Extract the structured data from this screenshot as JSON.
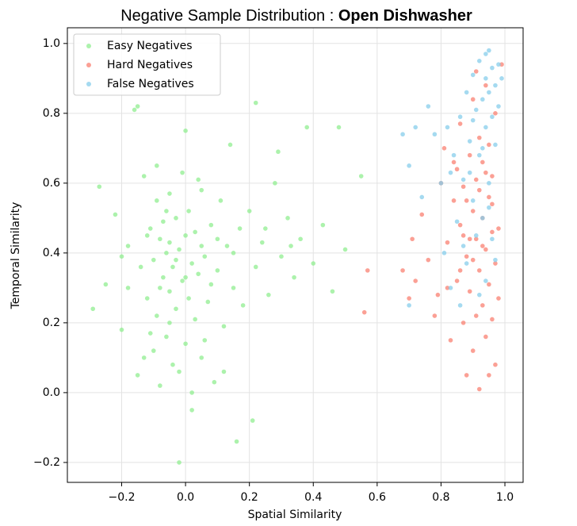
{
  "chart_data": {
    "type": "scatter",
    "title": "Negative Sample Distribution :",
    "title_emphasis": "Open Dishwasher",
    "x_label": "Spatial Similarity",
    "y_label": "Temporal Similarity",
    "xlim": [
      -0.37,
      1.057
    ],
    "ylim": [
      -0.257,
      1.045
    ],
    "xticks": [
      {
        "value": -0.2,
        "label": "−0.2"
      },
      {
        "value": 0,
        "label": "0.0"
      },
      {
        "value": 0.2,
        "label": "0.2"
      },
      {
        "value": 0.4,
        "label": "0.4"
      },
      {
        "value": 0.6,
        "label": "0.6"
      },
      {
        "value": 0.8,
        "label": "0.8"
      },
      {
        "value": 1,
        "label": "1.0"
      }
    ],
    "yticks": [
      {
        "value": -0.2,
        "label": "−0.2"
      },
      {
        "value": 0,
        "label": "0.0"
      },
      {
        "value": 0.2,
        "label": "0.2"
      },
      {
        "value": 0.4,
        "label": "0.4"
      },
      {
        "value": 0.6,
        "label": "0.6"
      },
      {
        "value": 0.8,
        "label": "0.8"
      },
      {
        "value": 1,
        "label": "1.0"
      }
    ],
    "grid": true,
    "legend": "upper left",
    "series": [
      {
        "name": "Easy Negatives",
        "color": "#90ee90",
        "x": [
          -0.29,
          -0.27,
          -0.25,
          -0.22,
          -0.2,
          -0.18,
          -0.16,
          -0.15,
          -0.14,
          -0.13,
          -0.12,
          -0.11,
          -0.1,
          -0.1,
          -0.09,
          -0.09,
          -0.08,
          -0.08,
          -0.07,
          -0.07,
          -0.06,
          -0.06,
          -0.05,
          -0.05,
          -0.05,
          -0.04,
          -0.04,
          -0.03,
          -0.03,
          -0.02,
          -0.02,
          -0.01,
          -0.01,
          0,
          0,
          0.01,
          0.01,
          0.02,
          0.02,
          0.03,
          0.03,
          0.04,
          0.05,
          0.05,
          0.06,
          0.07,
          0.08,
          0.09,
          0.1,
          0.11,
          0.12,
          0.13,
          0.14,
          0.15,
          0.16,
          0.17,
          0.18,
          0.2,
          0.22,
          0.22,
          0.24,
          0.26,
          0.28,
          0.3,
          0.32,
          0.34,
          0.36,
          0.38,
          0.4,
          0.43,
          0.46,
          0.5,
          0.55,
          -0.15,
          -0.13,
          -0.08,
          -0.05,
          0,
          0.06,
          0.12,
          0.21,
          -0.12,
          -0.06,
          -0.02,
          0.04,
          0.1,
          -0.18,
          -0.09,
          0.02,
          0.08,
          -0.03,
          0.15,
          0.25,
          0.33,
          -0.2,
          -0.11,
          0,
          0.05,
          0.48,
          0.29
        ],
        "values": [
          0.24,
          0.59,
          0.31,
          0.51,
          0.18,
          0.42,
          0.81,
          0.05,
          0.36,
          0.62,
          0.27,
          0.47,
          0.12,
          0.38,
          0.55,
          0.22,
          0.44,
          0.02,
          0.33,
          0.49,
          0.4,
          0.16,
          0.57,
          0.29,
          0.43,
          0.08,
          0.36,
          0.5,
          0.24,
          0.41,
          -0.2,
          0.32,
          0.63,
          0.14,
          0.45,
          0.27,
          0.52,
          0.37,
          -0.05,
          0.21,
          0.46,
          0.34,
          0.58,
          0.1,
          0.39,
          0.26,
          0.48,
          0.03,
          0.35,
          0.55,
          0.19,
          0.42,
          0.71,
          0.3,
          -0.14,
          0.47,
          0.25,
          0.52,
          0.83,
          0.36,
          0.43,
          0.28,
          0.6,
          0.39,
          0.5,
          0.33,
          0.44,
          0.76,
          0.37,
          0.48,
          0.29,
          0.41,
          0.62,
          0.82,
          0.1,
          0.3,
          0.2,
          0.75,
          0.15,
          0.06,
          -0.08,
          0.45,
          0.52,
          0.06,
          0.61,
          0.44,
          0.3,
          0.65,
          0,
          0.31,
          0.38,
          0.4,
          0.47,
          0.42,
          0.39,
          0.17,
          0.33,
          0.42,
          0.76,
          0.69
        ]
      },
      {
        "name": "Hard Negatives",
        "color": "#fa8072",
        "x": [
          0.57,
          0.56,
          0.68,
          0.7,
          0.71,
          0.72,
          0.74,
          0.76,
          0.78,
          0.79,
          0.8,
          0.81,
          0.82,
          0.83,
          0.84,
          0.85,
          0.85,
          0.86,
          0.86,
          0.87,
          0.87,
          0.88,
          0.88,
          0.89,
          0.89,
          0.9,
          0.9,
          0.9,
          0.91,
          0.91,
          0.91,
          0.92,
          0.92,
          0.92,
          0.93,
          0.93,
          0.93,
          0.94,
          0.94,
          0.94,
          0.95,
          0.95,
          0.95,
          0.96,
          0.96,
          0.96,
          0.97,
          0.97,
          0.97,
          0.98,
          0.98,
          0.89,
          0.92,
          0.94,
          0.86,
          0.9,
          0.93,
          0.88,
          0.84,
          0.82,
          0.99,
          0.95,
          0.91,
          0.87,
          0.96
        ],
        "values": [
          0.35,
          0.23,
          0.35,
          0.27,
          0.44,
          0.32,
          0.51,
          0.38,
          0.22,
          0.28,
          0.6,
          0.7,
          0.43,
          0.15,
          0.55,
          0.32,
          0.64,
          0.48,
          0.77,
          0.2,
          0.59,
          0.39,
          0.05,
          0.68,
          0.29,
          0.52,
          0.84,
          0.12,
          0.44,
          0.61,
          0.92,
          0.35,
          0.73,
          0.01,
          0.5,
          0.25,
          0.66,
          0.41,
          0.88,
          0.16,
          0.56,
          0.31,
          0.71,
          0.46,
          0.21,
          0.62,
          0.37,
          0.08,
          0.8,
          0.47,
          0.27,
          0.44,
          0.58,
          0.63,
          0.35,
          0.38,
          0.42,
          0.55,
          0.66,
          0.3,
          0.94,
          0.05,
          0.22,
          0.45,
          0.54
        ]
      },
      {
        "name": "False Negatives",
        "color": "#87ceeb",
        "x": [
          0.68,
          0.7,
          0.7,
          0.72,
          0.74,
          0.76,
          0.78,
          0.8,
          0.81,
          0.82,
          0.83,
          0.84,
          0.85,
          0.86,
          0.86,
          0.87,
          0.88,
          0.88,
          0.89,
          0.9,
          0.9,
          0.91,
          0.91,
          0.92,
          0.92,
          0.93,
          0.93,
          0.94,
          0.94,
          0.94,
          0.95,
          0.95,
          0.95,
          0.96,
          0.96,
          0.96,
          0.97,
          0.97,
          0.98,
          0.98,
          0.92,
          0.89,
          0.93,
          0.95,
          0.97,
          0.9,
          0.94,
          0.99,
          0.87,
          0.83
        ],
        "values": [
          0.74,
          0.65,
          0.25,
          0.76,
          0.56,
          0.82,
          0.74,
          0.6,
          0.4,
          0.76,
          0.3,
          0.68,
          0.49,
          0.79,
          0.25,
          0.61,
          0.86,
          0.37,
          0.72,
          0.91,
          0.55,
          0.81,
          0.45,
          0.95,
          0.68,
          0.84,
          0.5,
          0.9,
          0.76,
          0.32,
          0.98,
          0.86,
          0.6,
          0.93,
          0.79,
          0.44,
          0.88,
          0.71,
          0.94,
          0.82,
          0.28,
          0.63,
          0.7,
          0.53,
          0.38,
          0.78,
          0.97,
          0.9,
          0.42,
          0.63
        ]
      }
    ]
  }
}
